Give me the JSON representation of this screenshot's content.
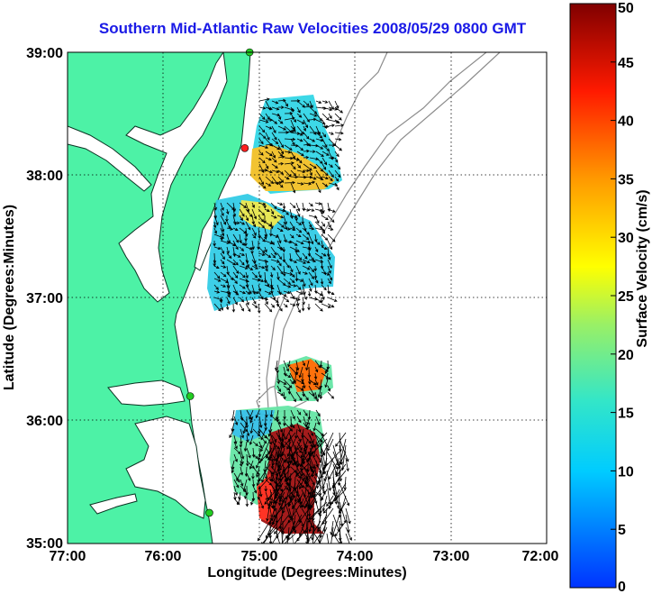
{
  "title": "Southern Mid-Atlantic Raw Velocities 2008/05/29 0800 GMT",
  "xlabel": "Longitude (Degrees:Minutes)",
  "ylabel": "Latitude (Degrees:Minutes)",
  "x_ticks": [
    "77:00",
    "76:00",
    "75:00",
    "74:00",
    "73:00",
    "72:00"
  ],
  "y_ticks": [
    "39:00",
    "38:00",
    "37:00",
    "36:00",
    "35:00"
  ],
  "colorbar": {
    "label": "Surface Velocity (cm/s)",
    "ticks": [
      "50",
      "45",
      "40",
      "35",
      "30",
      "25",
      "20",
      "15",
      "10",
      "5",
      "0"
    ],
    "range": [
      0,
      50
    ]
  },
  "colors": {
    "land": "#4df2a6",
    "water": "#ffffff",
    "title": "#1a1ae6",
    "bathymetry": "#8c8c8c"
  },
  "map_extent": {
    "lon": [
      -77,
      -72
    ],
    "lat": [
      35,
      39
    ]
  },
  "stations": [
    {
      "lon": -75.1,
      "lat": 39.0,
      "color": "#22cc22"
    },
    {
      "lon": -75.15,
      "lat": 38.22,
      "color": "#ff2020"
    },
    {
      "lon": -75.72,
      "lat": 36.2,
      "color": "#22cc22"
    },
    {
      "lon": -75.52,
      "lat": 35.25,
      "color": "#22cc22"
    }
  ]
}
